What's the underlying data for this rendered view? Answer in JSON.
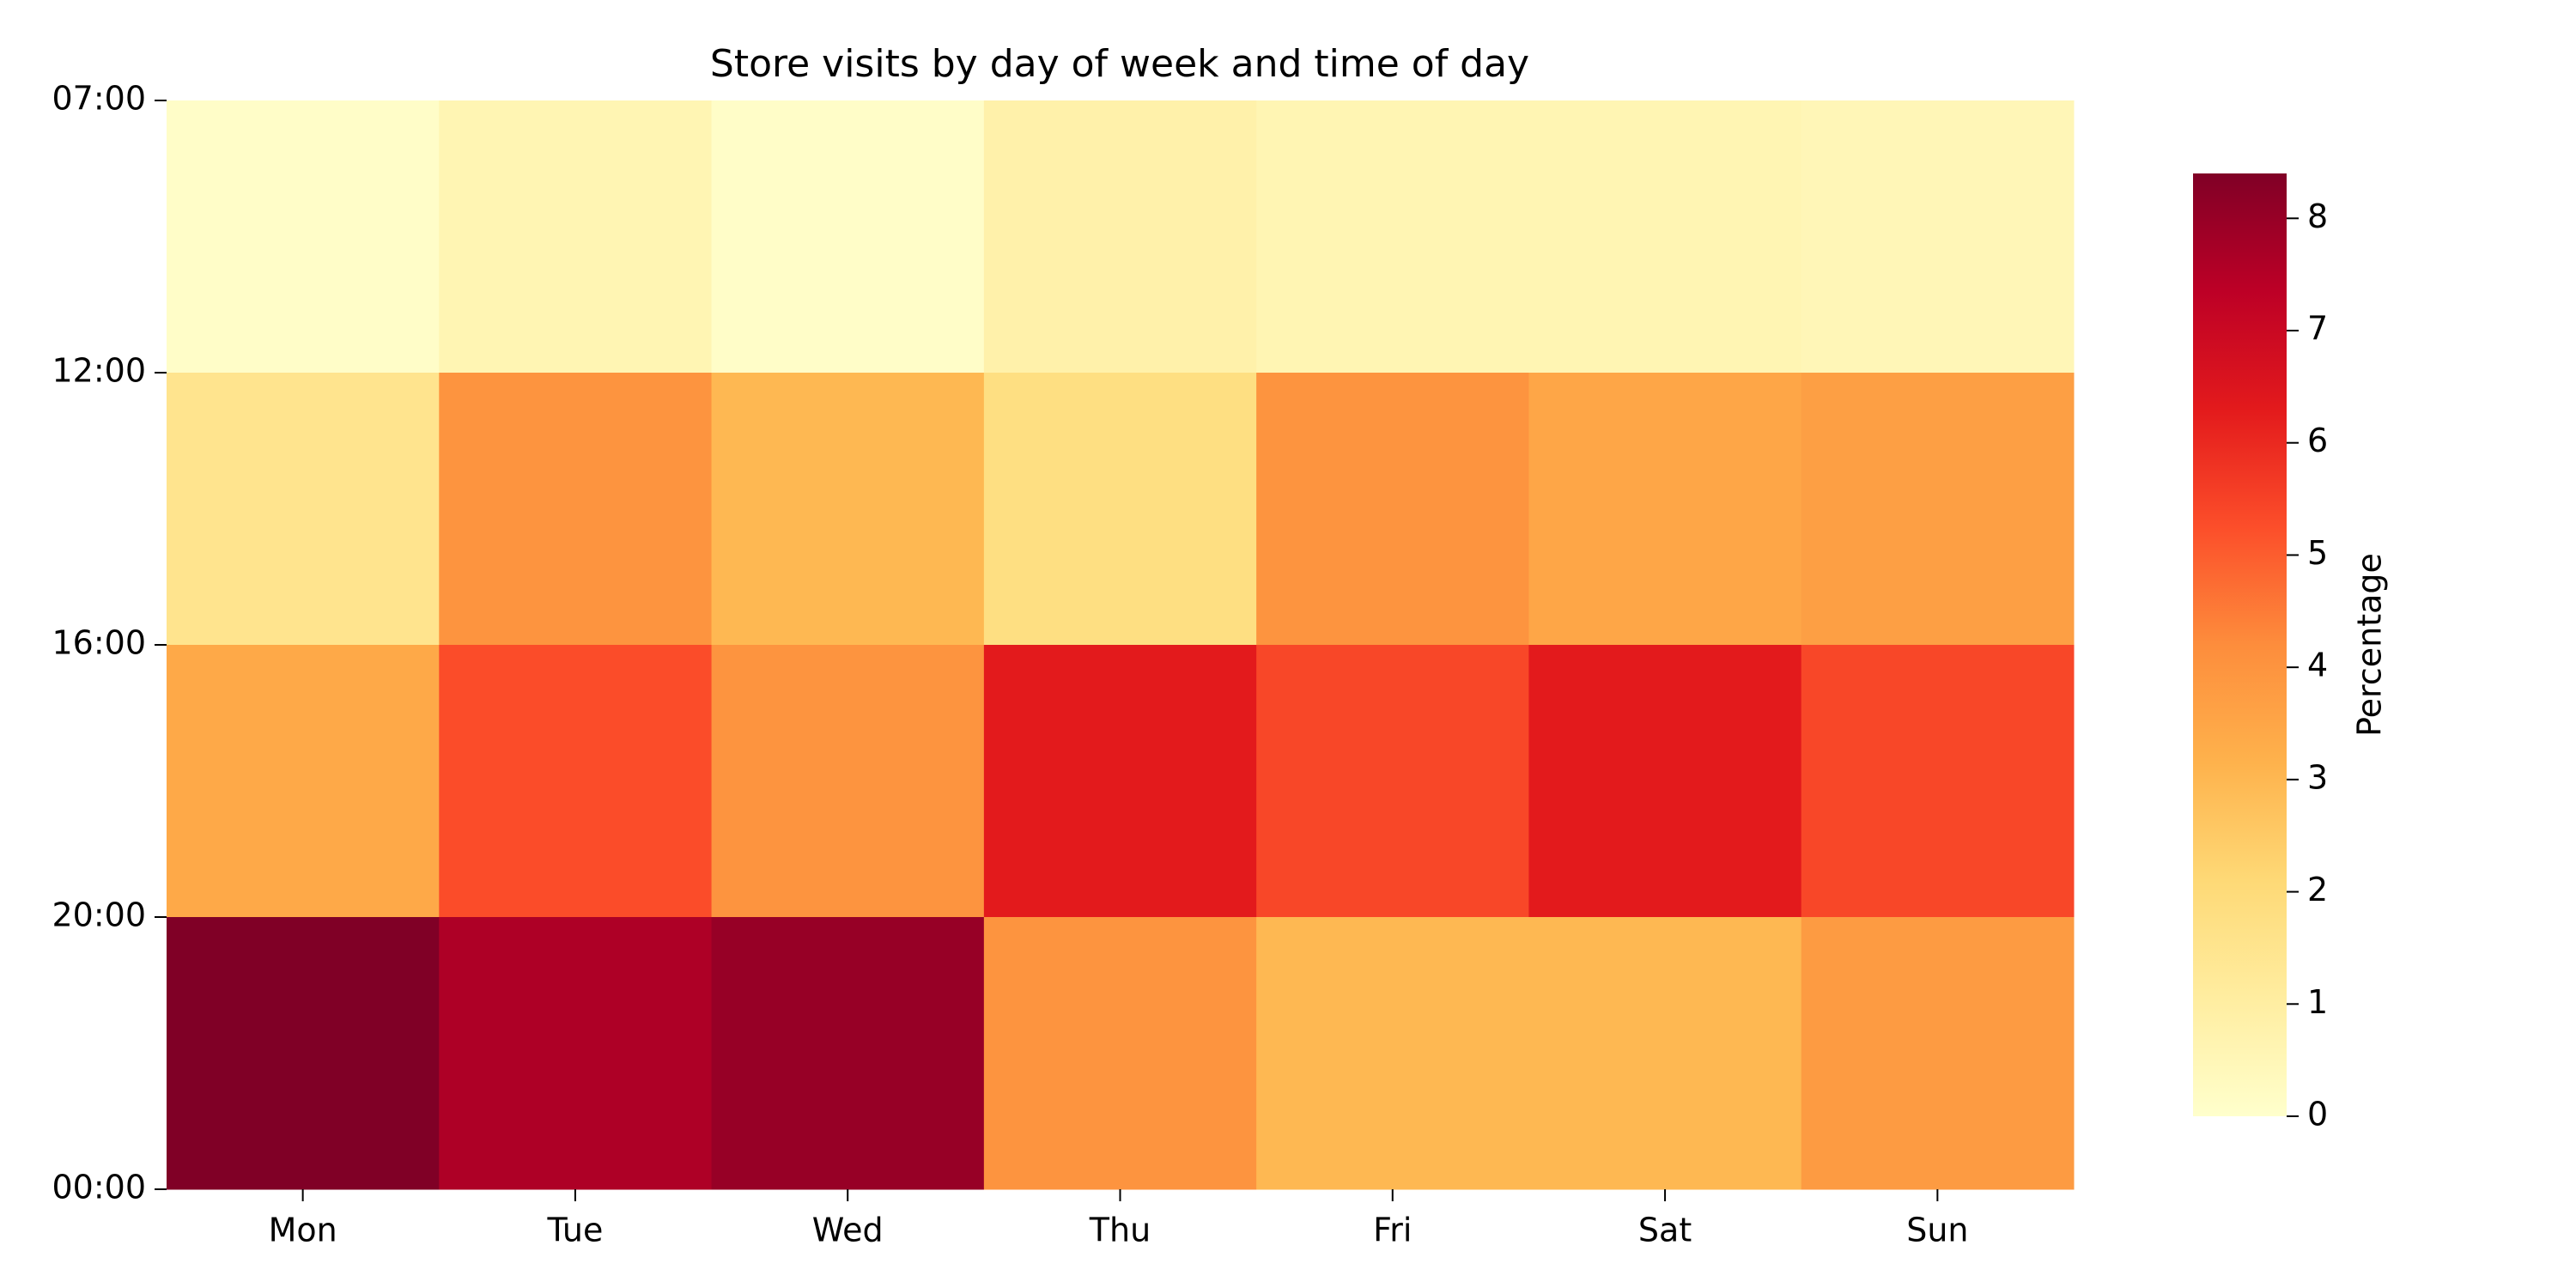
{
  "chart_data": {
    "type": "heatmap",
    "title": "Store visits by day of week and time of day",
    "x_categories": [
      "Mon",
      "Tue",
      "Wed",
      "Thu",
      "Fri",
      "Sat",
      "Sun"
    ],
    "y_edges": [
      "07:00",
      "12:00",
      "16:00",
      "20:00",
      "00:00"
    ],
    "values": [
      [
        0.1,
        0.6,
        0.1,
        0.8,
        0.6,
        0.6,
        0.5
      ],
      [
        1.5,
        4.0,
        3.0,
        1.8,
        4.0,
        3.5,
        3.7
      ],
      [
        3.4,
        5.3,
        4.0,
        6.3,
        5.4,
        6.3,
        5.4
      ],
      [
        8.4,
        7.6,
        8.0,
        4.0,
        3.0,
        3.0,
        3.8
      ]
    ],
    "colormap": "YlOrRd",
    "clim": [
      0,
      8.4
    ],
    "cticks": [
      0,
      1,
      2,
      3,
      4,
      5,
      6,
      7,
      8
    ],
    "colorbar_label": "Percentage"
  }
}
